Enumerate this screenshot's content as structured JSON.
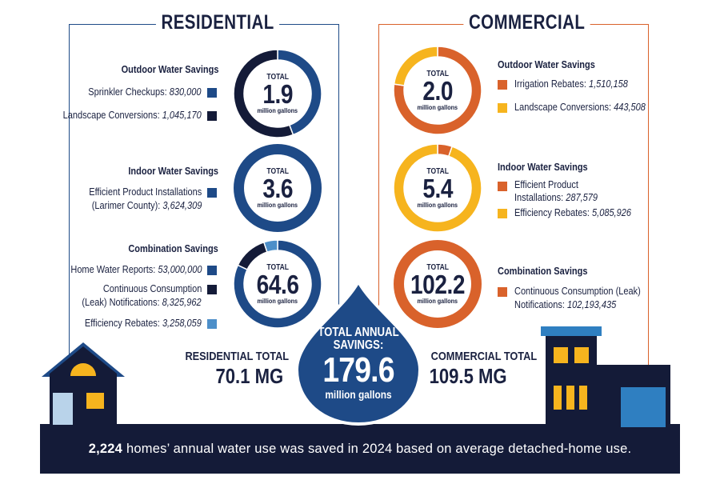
{
  "residential": {
    "title": "RESIDENTIAL",
    "categories": [
      {
        "title": "Outdoor Water Savings",
        "total_label": "TOTAL",
        "total": "1.9",
        "unit": "million gallons",
        "items": [
          {
            "label": "Sprinkler Checkups:",
            "value": "830,000"
          },
          {
            "label": "Landscape Conversions:",
            "value": "1,045,170"
          }
        ]
      },
      {
        "title": "Indoor Water Savings",
        "total_label": "TOTAL",
        "total": "3.6",
        "unit": "million gallons",
        "items": [
          {
            "label": "Efficient Product Installations",
            "label2": "(Larimer County):",
            "value": "3,624,309"
          }
        ]
      },
      {
        "title": "Combination Savings",
        "total_label": "TOTAL",
        "total": "64.6",
        "unit": "million gallons",
        "items": [
          {
            "label": "Home Water Reports:",
            "value": "53,000,000"
          },
          {
            "label": "Continuous Consumption",
            "label2": "(Leak) Notifications:",
            "value": "8,325,962"
          },
          {
            "label": "Efficiency Rebates:",
            "value": "3,258,059"
          }
        ]
      }
    ],
    "total_label": "RESIDENTIAL TOTAL",
    "total_value": "70.1 MG"
  },
  "commercial": {
    "title": "COMMERCIAL",
    "categories": [
      {
        "title": "Outdoor Water Savings",
        "total_label": "TOTAL",
        "total": "2.0",
        "unit": "million gallons",
        "items": [
          {
            "label": "Irrigation Rebates:",
            "value": "1,510,158"
          },
          {
            "label": "Landscape Conversions:",
            "value": "443,508"
          }
        ]
      },
      {
        "title": "Indoor Water Savings",
        "total_label": "TOTAL",
        "total": "5.4",
        "unit": "million gallons",
        "items": [
          {
            "label": "Efficient Product",
            "label2": "Installations:",
            "value": "287,579"
          },
          {
            "label": "Efficiency Rebates:",
            "value": "5,085,926"
          }
        ]
      },
      {
        "title": "Combination Savings",
        "total_label": "TOTAL",
        "total": "102.2",
        "unit": "million gallons",
        "items": [
          {
            "label": "Continuous Consumption (Leak)",
            "label2": "Notifications:",
            "value": "102,193,435"
          }
        ]
      }
    ],
    "total_label": "COMMERCIAL TOTAL",
    "total_value": "109.5 MG"
  },
  "drop": {
    "label_line1": "TOTAL ANNUAL",
    "label_line2": "SAVINGS:",
    "value": "179.6",
    "unit": "million gallons"
  },
  "footer": {
    "highlight": "2,224",
    "text": "homes’ annual water use was saved in 2024 based on average detached-home use."
  },
  "colors": {
    "navy": "#141b38",
    "blue": "#1e4a87",
    "light_blue": "#4d8fc9",
    "orange": "#d9622b",
    "yellow": "#f6b41e"
  },
  "chart_data": [
    {
      "type": "pie",
      "title": "Residential Outdoor Water Savings",
      "categories": [
        "Sprinkler Checkups",
        "Landscape Conversions"
      ],
      "values": [
        830000,
        1045170
      ],
      "colors": [
        "#1e4a87",
        "#141b38"
      ]
    },
    {
      "type": "pie",
      "title": "Residential Indoor Water Savings",
      "categories": [
        "Efficient Product Installations (Larimer County)"
      ],
      "values": [
        3624309
      ],
      "colors": [
        "#1e4a87"
      ]
    },
    {
      "type": "pie",
      "title": "Residential Combination Savings",
      "categories": [
        "Home Water Reports",
        "Continuous Consumption (Leak) Notifications",
        "Efficiency Rebates"
      ],
      "values": [
        53000000,
        8325962,
        3258059
      ],
      "colors": [
        "#1e4a87",
        "#141b38",
        "#4d8fc9"
      ]
    },
    {
      "type": "pie",
      "title": "Commercial Outdoor Water Savings",
      "categories": [
        "Irrigation Rebates",
        "Landscape Conversions"
      ],
      "values": [
        1510158,
        443508
      ],
      "colors": [
        "#d9622b",
        "#f6b41e"
      ]
    },
    {
      "type": "pie",
      "title": "Commercial Indoor Water Savings",
      "categories": [
        "Efficient Product Installations",
        "Efficiency Rebates"
      ],
      "values": [
        287579,
        5085926
      ],
      "colors": [
        "#d9622b",
        "#f6b41e"
      ]
    },
    {
      "type": "pie",
      "title": "Commercial Combination Savings",
      "categories": [
        "Continuous Consumption (Leak) Notifications"
      ],
      "values": [
        102193435
      ],
      "colors": [
        "#d9622b"
      ]
    }
  ]
}
